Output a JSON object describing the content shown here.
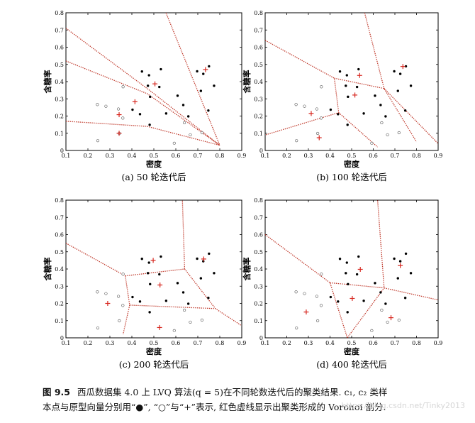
{
  "chart_data": [
    {
      "type": "scatter",
      "subtitle": "(a) 50 轮迭代后",
      "xlabel": "密度",
      "ylabel": "含糖率",
      "xlim": [
        0.1,
        0.9
      ],
      "ylim": [
        0,
        0.8
      ],
      "xticks": [
        "0.1",
        "0.2",
        "0.3",
        "0.4",
        "0.5",
        "0.6",
        "0.7",
        "0.8",
        "0.9"
      ],
      "yticks": [
        "0",
        "0.1",
        "0.2",
        "0.3",
        "0.4",
        "0.5",
        "0.6",
        "0.7",
        "0.8"
      ],
      "series": [
        {
          "marker": "dot",
          "points": [
            [
              0.697,
              0.46
            ],
            [
              0.774,
              0.376
            ],
            [
              0.634,
              0.264
            ],
            [
              0.608,
              0.318
            ],
            [
              0.556,
              0.215
            ],
            [
              0.403,
              0.237
            ],
            [
              0.481,
              0.149
            ],
            [
              0.437,
              0.211
            ],
            [
              0.666,
              0.091
            ],
            [
              0.243,
              0.267
            ],
            [
              0.245,
              0.057
            ],
            [
              0.343,
              0.099
            ],
            [
              0.639,
              0.161
            ],
            [
              0.657,
              0.198
            ],
            [
              0.36,
              0.37
            ],
            [
              0.593,
              0.042
            ],
            [
              0.719,
              0.103
            ],
            [
              0.359,
              0.188
            ],
            [
              0.339,
              0.241
            ],
            [
              0.282,
              0.257
            ],
            [
              0.748,
              0.232
            ],
            [
              0.714,
              0.346
            ],
            [
              0.483,
              0.312
            ],
            [
              0.478,
              0.437
            ],
            [
              0.525,
              0.369
            ],
            [
              0.751,
              0.489
            ],
            [
              0.532,
              0.472
            ],
            [
              0.473,
              0.376
            ],
            [
              0.725,
              0.445
            ],
            [
              0.446,
              0.459
            ]
          ]
        }
      ],
      "prototypes": [
        [
          0.342,
          0.208
        ],
        [
          0.414,
          0.283
        ],
        [
          0.505,
          0.387
        ],
        [
          0.735,
          0.47
        ],
        [
          0.342,
          0.1
        ]
      ],
      "boundaries": [
        [
          [
            0.1,
            0.52
          ],
          [
            0.47,
            0.33
          ],
          [
            0.8,
            0.03
          ]
        ],
        [
          [
            0.1,
            0.71
          ],
          [
            0.48,
            0.35
          ],
          [
            0.8,
            0.03
          ]
        ],
        [
          [
            0.1,
            0.17
          ],
          [
            0.47,
            0.14
          ],
          [
            0.8,
            0.03
          ]
        ],
        [
          [
            0.555,
            0.8
          ],
          [
            0.8,
            0.03
          ]
        ]
      ]
    },
    {
      "type": "scatter",
      "subtitle": "(b) 100 轮迭代后",
      "xlabel": "密度",
      "ylabel": "含糖率",
      "xlim": [
        0.1,
        0.9
      ],
      "ylim": [
        0,
        0.8
      ],
      "xticks": [
        "0.1",
        "0.2",
        "0.3",
        "0.4",
        "0.5",
        "0.6",
        "0.7",
        "0.8",
        "0.9"
      ],
      "yticks": [
        "0",
        "0.1",
        "0.2",
        "0.3",
        "0.4",
        "0.5",
        "0.6",
        "0.7",
        "0.8"
      ],
      "series": [
        {
          "marker": "dot",
          "points": [
            [
              0.697,
              0.46
            ],
            [
              0.774,
              0.376
            ],
            [
              0.634,
              0.264
            ],
            [
              0.608,
              0.318
            ],
            [
              0.556,
              0.215
            ],
            [
              0.403,
              0.237
            ],
            [
              0.481,
              0.149
            ],
            [
              0.437,
              0.211
            ],
            [
              0.666,
              0.091
            ],
            [
              0.243,
              0.267
            ],
            [
              0.245,
              0.057
            ],
            [
              0.343,
              0.099
            ],
            [
              0.639,
              0.161
            ],
            [
              0.657,
              0.198
            ],
            [
              0.36,
              0.37
            ],
            [
              0.593,
              0.042
            ],
            [
              0.719,
              0.103
            ],
            [
              0.359,
              0.188
            ],
            [
              0.339,
              0.241
            ],
            [
              0.282,
              0.257
            ],
            [
              0.748,
              0.232
            ],
            [
              0.714,
              0.346
            ],
            [
              0.483,
              0.312
            ],
            [
              0.478,
              0.437
            ],
            [
              0.525,
              0.369
            ],
            [
              0.751,
              0.489
            ],
            [
              0.532,
              0.472
            ],
            [
              0.473,
              0.376
            ],
            [
              0.725,
              0.445
            ],
            [
              0.446,
              0.459
            ]
          ]
        }
      ],
      "prototypes": [
        [
          0.313,
          0.215
        ],
        [
          0.35,
          0.074
        ],
        [
          0.515,
          0.322
        ],
        [
          0.537,
          0.436
        ],
        [
          0.737,
          0.488
        ]
      ],
      "boundaries": [
        [
          [
            0.1,
            0.64
          ],
          [
            0.42,
            0.42
          ],
          [
            0.44,
            0.22
          ],
          [
            0.1,
            0.09
          ]
        ],
        [
          [
            0.42,
            0.42
          ],
          [
            0.65,
            0.36
          ],
          [
            0.8,
            0.05
          ]
        ],
        [
          [
            0.44,
            0.22
          ],
          [
            0.62,
            0.02
          ]
        ],
        [
          [
            0.65,
            0.36
          ],
          [
            0.9,
            0.04
          ]
        ],
        [
          [
            0.56,
            0.8
          ],
          [
            0.65,
            0.36
          ]
        ]
      ]
    },
    {
      "type": "scatter",
      "subtitle": "(c) 200 轮迭代后",
      "xlabel": "密度",
      "ylabel": "含糖率",
      "xlim": [
        0.1,
        0.9
      ],
      "ylim": [
        0,
        0.8
      ],
      "xticks": [
        "0.1",
        "0.2",
        "0.3",
        "0.4",
        "0.5",
        "0.6",
        "0.7",
        "0.8",
        "0.9"
      ],
      "yticks": [
        "0",
        "0.1",
        "0.2",
        "0.3",
        "0.4",
        "0.5",
        "0.6",
        "0.7",
        "0.8"
      ],
      "series": [
        {
          "marker": "dot",
          "points": [
            [
              0.697,
              0.46
            ],
            [
              0.774,
              0.376
            ],
            [
              0.634,
              0.264
            ],
            [
              0.608,
              0.318
            ],
            [
              0.556,
              0.215
            ],
            [
              0.403,
              0.237
            ],
            [
              0.481,
              0.149
            ],
            [
              0.437,
              0.211
            ],
            [
              0.666,
              0.091
            ],
            [
              0.243,
              0.267
            ],
            [
              0.245,
              0.057
            ],
            [
              0.343,
              0.099
            ],
            [
              0.639,
              0.161
            ],
            [
              0.657,
              0.198
            ],
            [
              0.36,
              0.37
            ],
            [
              0.593,
              0.042
            ],
            [
              0.719,
              0.103
            ],
            [
              0.359,
              0.188
            ],
            [
              0.339,
              0.241
            ],
            [
              0.282,
              0.257
            ],
            [
              0.748,
              0.232
            ],
            [
              0.714,
              0.346
            ],
            [
              0.483,
              0.312
            ],
            [
              0.478,
              0.437
            ],
            [
              0.525,
              0.369
            ],
            [
              0.751,
              0.489
            ],
            [
              0.532,
              0.472
            ],
            [
              0.473,
              0.376
            ],
            [
              0.725,
              0.445
            ],
            [
              0.446,
              0.459
            ]
          ]
        }
      ],
      "prototypes": [
        [
          0.29,
          0.2
        ],
        [
          0.497,
          0.45
        ],
        [
          0.528,
          0.307
        ],
        [
          0.526,
          0.06
        ],
        [
          0.727,
          0.458
        ]
      ],
      "boundaries": [
        [
          [
            0.1,
            0.55
          ],
          [
            0.37,
            0.36
          ],
          [
            0.39,
            0.19
          ],
          [
            0.36,
            0.02
          ]
        ],
        [
          [
            0.37,
            0.36
          ],
          [
            0.64,
            0.4
          ],
          [
            0.63,
            0.8
          ]
        ],
        [
          [
            0.39,
            0.19
          ],
          [
            0.78,
            0.17
          ],
          [
            0.9,
            0.07
          ]
        ],
        [
          [
            0.64,
            0.4
          ],
          [
            0.78,
            0.17
          ]
        ]
      ]
    },
    {
      "type": "scatter",
      "subtitle": "(d) 400 轮迭代后",
      "xlabel": "密度",
      "ylabel": "含糖率",
      "xlim": [
        0.1,
        0.9
      ],
      "ylim": [
        0,
        0.8
      ],
      "xticks": [
        "0.1",
        "0.2",
        "0.3",
        "0.4",
        "0.5",
        "0.6",
        "0.7",
        "0.8",
        "0.9"
      ],
      "yticks": [
        "0",
        "0.1",
        "0.2",
        "0.3",
        "0.4",
        "0.5",
        "0.6",
        "0.7",
        "0.8"
      ],
      "series": [
        {
          "marker": "dot",
          "points": [
            [
              0.697,
              0.46
            ],
            [
              0.774,
              0.376
            ],
            [
              0.634,
              0.264
            ],
            [
              0.608,
              0.318
            ],
            [
              0.556,
              0.215
            ],
            [
              0.403,
              0.237
            ],
            [
              0.481,
              0.149
            ],
            [
              0.437,
              0.211
            ],
            [
              0.666,
              0.091
            ],
            [
              0.243,
              0.267
            ],
            [
              0.245,
              0.057
            ],
            [
              0.343,
              0.099
            ],
            [
              0.639,
              0.161
            ],
            [
              0.657,
              0.198
            ],
            [
              0.36,
              0.37
            ],
            [
              0.593,
              0.042
            ],
            [
              0.719,
              0.103
            ],
            [
              0.359,
              0.188
            ],
            [
              0.339,
              0.241
            ],
            [
              0.282,
              0.257
            ],
            [
              0.748,
              0.232
            ],
            [
              0.714,
              0.346
            ],
            [
              0.483,
              0.312
            ],
            [
              0.478,
              0.437
            ],
            [
              0.525,
              0.369
            ],
            [
              0.751,
              0.489
            ],
            [
              0.532,
              0.472
            ],
            [
              0.473,
              0.376
            ],
            [
              0.725,
              0.445
            ],
            [
              0.446,
              0.459
            ]
          ]
        }
      ],
      "prototypes": [
        [
          0.29,
          0.15
        ],
        [
          0.503,
          0.229
        ],
        [
          0.54,
          0.398
        ],
        [
          0.682,
          0.117
        ],
        [
          0.725,
          0.42
        ]
      ],
      "boundaries": [
        [
          [
            0.1,
            0.6
          ],
          [
            0.4,
            0.32
          ],
          [
            0.48,
            0.0
          ]
        ],
        [
          [
            0.4,
            0.32
          ],
          [
            0.65,
            0.29
          ],
          [
            0.62,
            0.8
          ]
        ],
        [
          [
            0.65,
            0.29
          ],
          [
            0.9,
            0.22
          ]
        ],
        [
          [
            0.48,
            0.0
          ],
          [
            0.65,
            0.29
          ]
        ]
      ]
    }
  ],
  "caption": {
    "label": "图 9.5",
    "line1": "西瓜数据集 4.0 上 LVQ 算法(q = 5)在不同轮数迭代后的聚类结果. c₁, c₂ 类样",
    "line2": "本点与原型向量分别用“●”, “○”与“+”表示, 红色虚线显示出聚类形成的 Voronoi 剖分."
  },
  "watermark": "https://blog.csdn.net/Tinky2013"
}
